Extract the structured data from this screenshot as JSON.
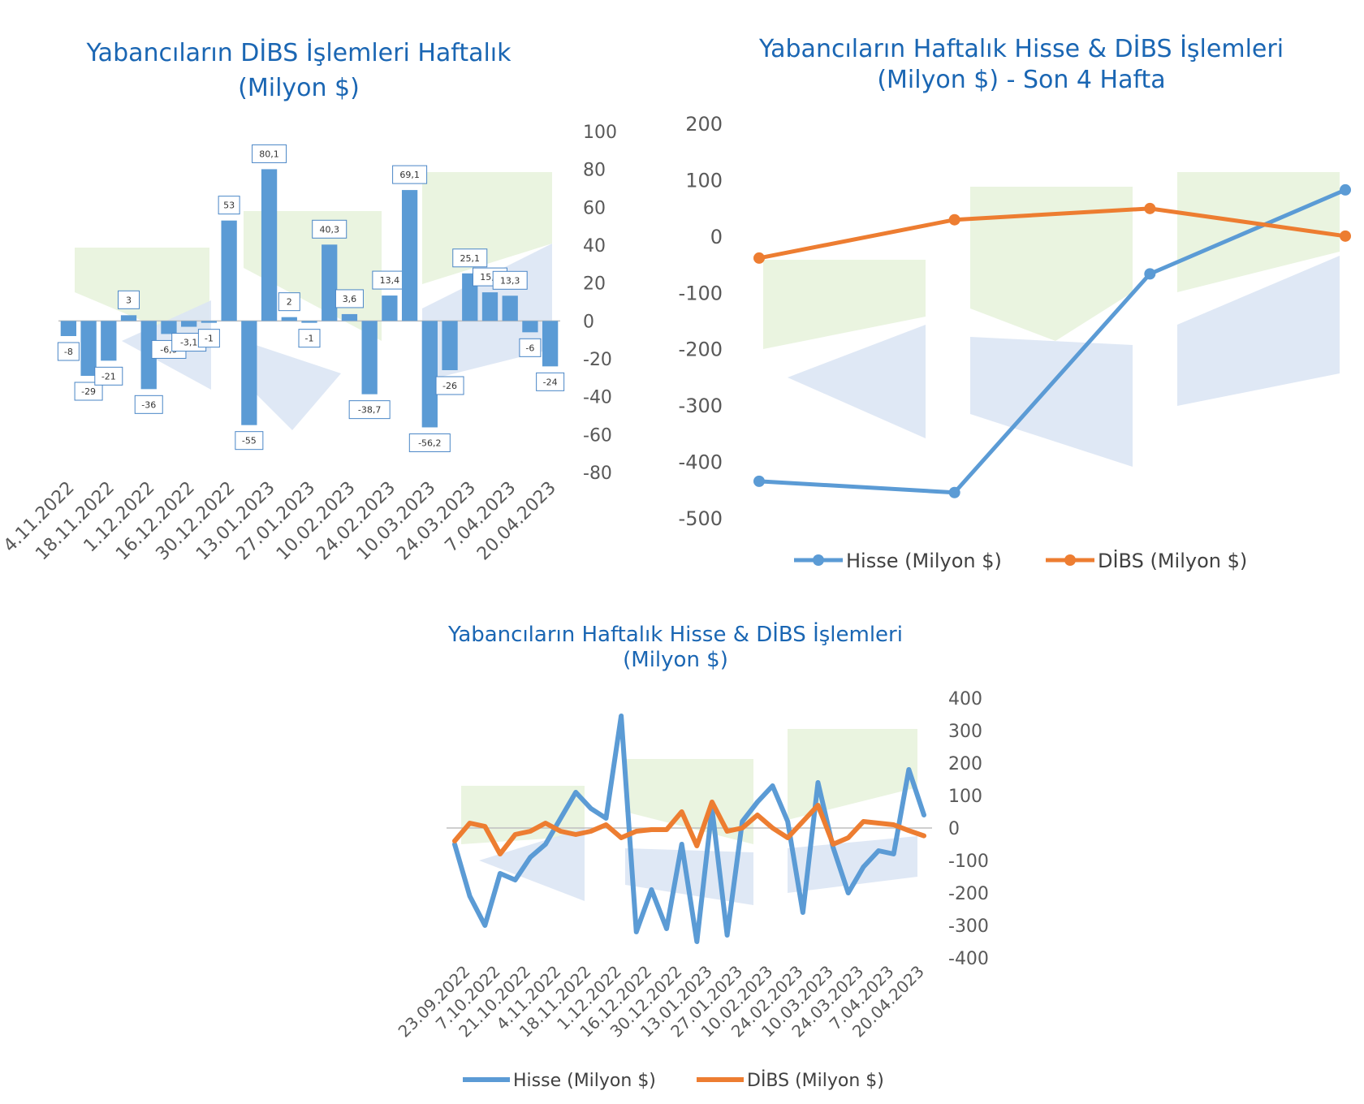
{
  "colors": {
    "bar": "#5b9bd5",
    "hisse": "#5b9bd5",
    "dibs": "#ed7d31",
    "title": "#1a66b3",
    "watermark_green": "#e8f3dd",
    "watermark_blue": "#dce6f4",
    "label_border": "#4a86c6"
  },
  "chart_data": [
    {
      "id": "dibs_weekly",
      "type": "bar",
      "title_lines": [
        "Yabancıların DİBS İşlemleri Haftalık",
        "(Milyon $)"
      ],
      "y_axis_position": "right",
      "ylim": [
        -80,
        100
      ],
      "yticks": [
        100,
        80,
        60,
        40,
        20,
        0,
        -20,
        -40,
        -60,
        -80
      ],
      "values": [
        -8,
        -29,
        -21,
        3,
        -36,
        -6.9,
        -3.1,
        -1,
        53,
        -55,
        80.1,
        2,
        -1,
        40.3,
        3.6,
        -38.7,
        13.4,
        69.1,
        -56.2,
        -26,
        25.1,
        15.1,
        13.3,
        -6,
        -24
      ],
      "data_labels": [
        "-8",
        "-29",
        "-21",
        "3",
        "-36",
        "-6,9",
        "-3,1",
        "-1",
        "53",
        "-55",
        "80,1",
        "2",
        "-1",
        "40,3",
        "3,6",
        "-38,7",
        "13,4",
        "69,1",
        "-56,2",
        "-26",
        "25,1",
        "15,1",
        "13,3",
        "-6",
        "-24"
      ],
      "x_tick_labels": [
        "4.11.2022",
        "18.11.2022",
        "1.12.2022",
        "16.12.2022",
        "30.12.2022",
        "13.01.2023",
        "27.01.2023",
        "10.02.2023",
        "24.02.2023",
        "10.03.2023",
        "24.03.2023",
        "7.04.2023",
        "20.04.2023"
      ],
      "x_tick_every": 2,
      "grid": false,
      "legend": "none"
    },
    {
      "id": "last4",
      "type": "line",
      "title_lines": [
        "Yabancıların Haftalık Hisse & DİBS İşlemleri",
        "(Milyon $) - Son 4 Hafta"
      ],
      "y_axis_position": "left",
      "ylim": [
        -500,
        200
      ],
      "yticks": [
        200,
        100,
        0,
        -100,
        -200,
        -300,
        -400,
        -500
      ],
      "x_count": 4,
      "series": [
        {
          "name": "Hisse (Milyon $)",
          "color": "#5b9bd5",
          "values": [
            -435,
            -455,
            -67,
            82
          ]
        },
        {
          "name": "DİBS (Milyon $)",
          "color": "#ed7d31",
          "values": [
            -39,
            29,
            49,
            0
          ]
        }
      ],
      "markers": true,
      "grid": false,
      "legend": "bottom"
    },
    {
      "id": "weekly_all",
      "type": "line",
      "title_lines": [
        "Yabancıların Haftalık Hisse & DİBS İşlemleri",
        "(Milyon $)"
      ],
      "y_axis_position": "right",
      "ylim": [
        -400,
        400
      ],
      "yticks": [
        400,
        300,
        200,
        100,
        0,
        -100,
        -200,
        -300,
        -400
      ],
      "x_tick_labels": [
        "23.09.2022",
        "7.10.2022",
        "21.10.2022",
        "4.11.2022",
        "18.11.2022",
        "1.12.2022",
        "16.12.2022",
        "30.12.2022",
        "13.01.2023",
        "27.01.2023",
        "10.02.2023",
        "24.02.2023",
        "10.03.2023",
        "24.03.2023",
        "7.04.2023",
        "20.04.2023"
      ],
      "x_tick_every": 2,
      "series": [
        {
          "name": "Hisse (Milyon $)",
          "color": "#5b9bd5",
          "values": [
            -50,
            -210,
            -300,
            -140,
            -160,
            -90,
            -50,
            30,
            110,
            60,
            30,
            345,
            -320,
            -190,
            -310,
            -50,
            -350,
            60,
            -330,
            20,
            80,
            130,
            20,
            -260,
            140,
            -60,
            -200,
            -120,
            -70,
            -80,
            180,
            40
          ]
        },
        {
          "name": "DİBS (Milyon $)",
          "color": "#ed7d31",
          "values": [
            -40,
            15,
            5,
            -80,
            -20,
            -10,
            15,
            -10,
            -20,
            -10,
            10,
            -30,
            -10,
            -5,
            -5,
            50,
            -55,
            80,
            -10,
            0,
            40,
            0,
            -30,
            20,
            70,
            -50,
            -30,
            20,
            15,
            10,
            -8,
            -24
          ]
        }
      ],
      "zero_line": true,
      "grid": false,
      "legend": "bottom"
    }
  ]
}
